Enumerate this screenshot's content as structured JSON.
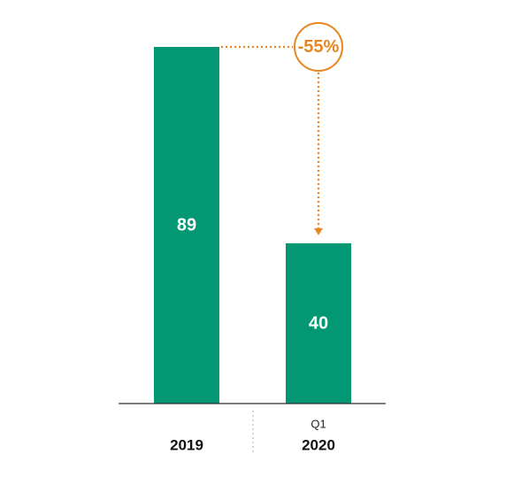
{
  "chart_data": {
    "type": "bar",
    "categories": [
      "2019",
      "2020"
    ],
    "category_sublabels": [
      "",
      "Q1"
    ],
    "values": [
      89,
      40
    ],
    "data_labels": [
      "89",
      "40"
    ],
    "annotation": {
      "text": "-55%",
      "from_category": "2019",
      "to_category": "2020"
    },
    "title": "",
    "xlabel": "",
    "ylabel": "",
    "ylim": [
      0,
      89
    ],
    "grid": false,
    "legend": "none"
  },
  "colors": {
    "bar": "#039773",
    "accent": "#E8861F",
    "axis": "#333333",
    "divider": "#BBBBBB"
  }
}
